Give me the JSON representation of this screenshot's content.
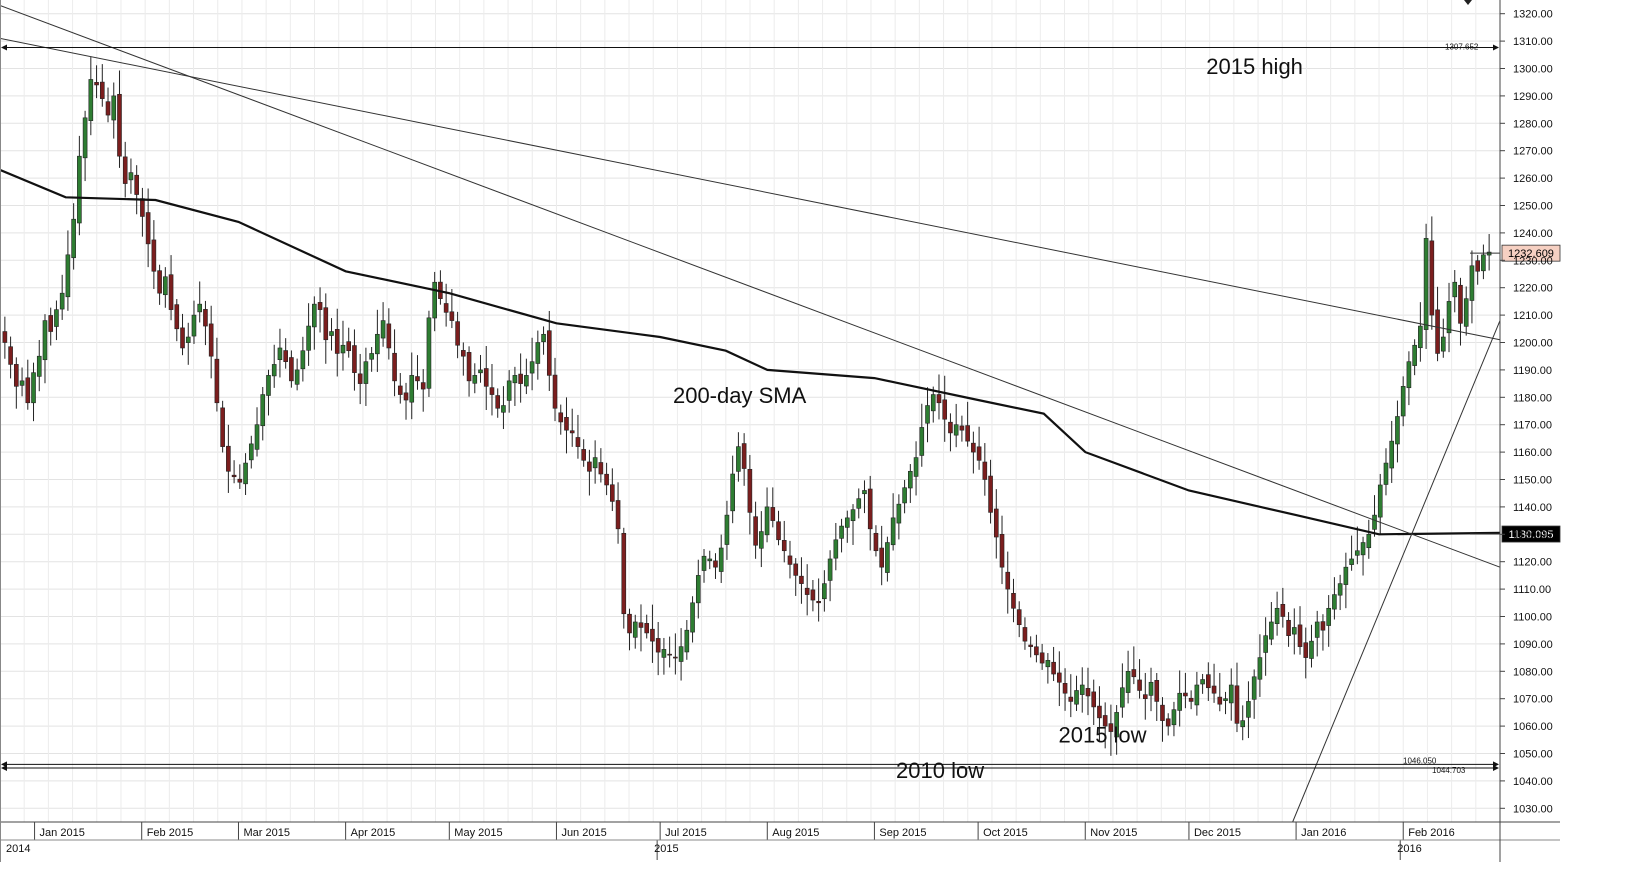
{
  "chart_data": {
    "type": "candlestick",
    "title": "",
    "xlabel": "",
    "ylabel": "",
    "ylim": [
      1025,
      1325
    ],
    "y_ticks": [
      1030,
      1040,
      1050,
      1060,
      1070,
      1080,
      1090,
      1100,
      1110,
      1120,
      1130,
      1140,
      1150,
      1160,
      1170,
      1180,
      1190,
      1200,
      1210,
      1220,
      1230,
      1240,
      1250,
      1260,
      1270,
      1280,
      1290,
      1300,
      1310,
      1320
    ],
    "y_tick_labels": [
      "1030.00",
      "1040.00",
      "1050.00",
      "1060.00",
      "1070.00",
      "1080.00",
      "1090.00",
      "1100.00",
      "1110.00",
      "1120.00",
      "1130.00",
      "1140.00",
      "1150.00",
      "1160.00",
      "1170.00",
      "1180.00",
      "1190.00",
      "1200.00",
      "1210.00",
      "1220.00",
      "1230.00",
      "1240.00",
      "1250.00",
      "1260.00",
      "1270.00",
      "1280.00",
      "1290.00",
      "1300.00",
      "1310.00",
      "1320.00"
    ],
    "x_start": "2014-12-22",
    "x_end": "2016-02-29",
    "month_labels": [
      {
        "label": "Jan 2015",
        "date": "2015-01-01"
      },
      {
        "label": "Feb 2015",
        "date": "2015-02-01"
      },
      {
        "label": "Mar 2015",
        "date": "2015-03-01"
      },
      {
        "label": "Apr 2015",
        "date": "2015-04-01"
      },
      {
        "label": "May 2015",
        "date": "2015-05-01"
      },
      {
        "label": "Jun 2015",
        "date": "2015-06-01"
      },
      {
        "label": "Jul 2015",
        "date": "2015-07-01"
      },
      {
        "label": "Aug 2015",
        "date": "2015-08-01"
      },
      {
        "label": "Sep 2015",
        "date": "2015-09-01"
      },
      {
        "label": "Oct 2015",
        "date": "2015-10-01"
      },
      {
        "label": "Nov 2015",
        "date": "2015-11-01"
      },
      {
        "label": "Dec 2015",
        "date": "2015-12-01"
      },
      {
        "label": "Jan 2016",
        "date": "2016-01-01"
      },
      {
        "label": "Feb 2016",
        "date": "2016-02-01"
      }
    ],
    "year_labels": [
      {
        "label": "2014",
        "date": "2014-12-22"
      },
      {
        "label": "2015",
        "date": "2015-07-01"
      },
      {
        "label": "2016",
        "date": "2016-02-01"
      }
    ],
    "closes": [
      1200,
      1192,
      1184,
      1186,
      1178,
      1189,
      1195,
      1208,
      1204,
      1212,
      1218,
      1232,
      1245,
      1268,
      1282,
      1296,
      1294,
      1289,
      1283,
      1290,
      1268,
      1258,
      1262,
      1254,
      1246,
      1236,
      1226,
      1218,
      1224,
      1212,
      1205,
      1198,
      1202,
      1210,
      1214,
      1206,
      1195,
      1178,
      1162,
      1153,
      1151,
      1149,
      1156,
      1163,
      1170,
      1181,
      1188,
      1192,
      1198,
      1193,
      1186,
      1190,
      1197,
      1206,
      1214,
      1212,
      1201,
      1204,
      1196,
      1199,
      1197,
      1189,
      1185,
      1193,
      1196,
      1203,
      1208,
      1198,
      1186,
      1181,
      1179,
      1188,
      1186,
      1183,
      1209,
      1222,
      1216,
      1211,
      1208,
      1199,
      1195,
      1186,
      1188,
      1190,
      1184,
      1181,
      1176,
      1177,
      1186,
      1188,
      1185,
      1188,
      1193,
      1200,
      1203,
      1188,
      1176,
      1171,
      1168,
      1167,
      1162,
      1157,
      1153,
      1158,
      1152,
      1148,
      1142,
      1132,
      1101,
      1094,
      1098,
      1096,
      1094,
      1091,
      1087,
      1088,
      1086,
      1085,
      1089,
      1095,
      1105,
      1115,
      1122,
      1121,
      1118,
      1125,
      1137,
      1152,
      1162,
      1154,
      1138,
      1126,
      1131,
      1140,
      1135,
      1128,
      1124,
      1119,
      1115,
      1112,
      1108,
      1106,
      1105,
      1112,
      1121,
      1128,
      1133,
      1136,
      1139,
      1143,
      1146,
      1132,
      1124,
      1118,
      1127,
      1136,
      1141,
      1147,
      1153,
      1158,
      1169,
      1177,
      1181,
      1178,
      1172,
      1167,
      1170,
      1168,
      1164,
      1160,
      1157,
      1150,
      1138,
      1129,
      1118,
      1110,
      1103,
      1097,
      1091,
      1089,
      1086,
      1083,
      1084,
      1079,
      1076,
      1072,
      1069,
      1073,
      1075,
      1071,
      1067,
      1063,
      1060,
      1058,
      1065,
      1074,
      1080,
      1078,
      1073,
      1070,
      1076,
      1069,
      1062,
      1060,
      1066,
      1072,
      1071,
      1069,
      1075,
      1077,
      1074,
      1072,
      1068,
      1070,
      1075,
      1061,
      1062,
      1069,
      1078,
      1085,
      1093,
      1098,
      1103,
      1100,
      1093,
      1096,
      1089,
      1085,
      1091,
      1098,
      1095,
      1103,
      1108,
      1112,
      1118,
      1121,
      1124,
      1127,
      1130,
      1137,
      1148,
      1156,
      1164,
      1173,
      1184,
      1193,
      1199,
      1206,
      1238,
      1210,
      1196,
      1202,
      1215,
      1222,
      1207,
      1216,
      1228,
      1226,
      1232,
      1233
    ],
    "annotations": [
      {
        "text": "2015 high",
        "date": "2015-12-20",
        "value": 1298
      },
      {
        "text": "200-day SMA",
        "date": "2015-07-24",
        "value": 1178
      },
      {
        "text": "2015 low",
        "date": "2015-11-06",
        "value": 1054
      },
      {
        "text": "2010 low",
        "date": "2015-09-20",
        "value": 1041
      }
    ],
    "level_labels": [
      {
        "text": "1307.652",
        "value": 1307.652
      },
      {
        "text": "1046.050",
        "value": 1046.05
      },
      {
        "text": "1044.703",
        "value": 1044.703
      }
    ],
    "price_badges": [
      {
        "text": "1232.609",
        "value": 1232.609,
        "color": "#f6d0c2",
        "text_color": "#000000"
      },
      {
        "text": "1130.095",
        "value": 1130.095,
        "color": "#000000",
        "text_color": "#ffffff"
      }
    ],
    "trend_lines": [
      {
        "start": {
          "date": "2014-12-22",
          "value": 1311
        },
        "end": {
          "date": "2016-02-29",
          "value": 1201
        }
      },
      {
        "start": {
          "date": "2014-12-22",
          "value": 1323
        },
        "end": {
          "date": "2016-02-29",
          "value": 1118
        }
      },
      {
        "start": {
          "date": "2015-12-31",
          "value": 1025
        },
        "end": {
          "date": "2016-02-29",
          "value": 1208
        }
      }
    ],
    "sma_200": [
      {
        "date": "2014-12-22",
        "value": 1263
      },
      {
        "date": "2015-01-10",
        "value": 1253
      },
      {
        "date": "2015-02-05",
        "value": 1252
      },
      {
        "date": "2015-03-01",
        "value": 1244
      },
      {
        "date": "2015-04-01",
        "value": 1226
      },
      {
        "date": "2015-05-01",
        "value": 1218
      },
      {
        "date": "2015-06-01",
        "value": 1207
      },
      {
        "date": "2015-07-01",
        "value": 1202
      },
      {
        "date": "2015-07-20",
        "value": 1197
      },
      {
        "date": "2015-08-01",
        "value": 1190
      },
      {
        "date": "2015-09-01",
        "value": 1187
      },
      {
        "date": "2015-10-01",
        "value": 1179
      },
      {
        "date": "2015-10-20",
        "value": 1174
      },
      {
        "date": "2015-11-01",
        "value": 1160
      },
      {
        "date": "2015-12-01",
        "value": 1146
      },
      {
        "date": "2016-01-01",
        "value": 1137
      },
      {
        "date": "2016-01-25",
        "value": 1130
      },
      {
        "date": "2016-02-29",
        "value": 1130.5
      }
    ],
    "horizontal_levels": [
      1307.652,
      1046.05,
      1044.703
    ],
    "bull_color": "#2e7d32",
    "bear_color": "#7b1e1e",
    "grid": true,
    "legend": "none"
  }
}
